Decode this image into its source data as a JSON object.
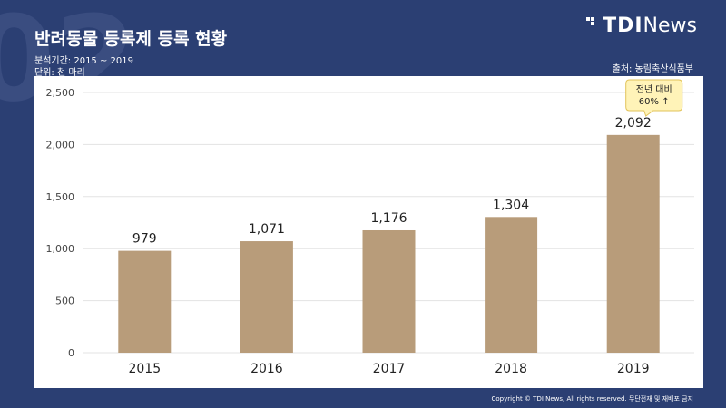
{
  "header": {
    "title": "반려동물 등록제 등록 현황",
    "period": "분석기간: 2015 ~ 2019",
    "unit": "단위: 천 마리",
    "source": "출처: 농림축산식품부",
    "logo_bold": "TDI",
    "logo_light": "News",
    "deco_text": "02"
  },
  "footer": {
    "copyright": "Copyright © TDI News, All rights reserved. 무단전재 및 재배포 금지"
  },
  "colors": {
    "background": "#2b3f73",
    "bar": "#b89c7a",
    "callout_fill": "#fff3b8",
    "callout_border": "#e2c35a"
  },
  "chart_data": {
    "type": "bar",
    "categories": [
      "2015",
      "2016",
      "2017",
      "2018",
      "2019"
    ],
    "values": [
      979,
      1071,
      1176,
      1304,
      2092
    ],
    "value_labels": [
      "979",
      "1,071",
      "1,176",
      "1,304",
      "2,092"
    ],
    "ylim": [
      0,
      2500
    ],
    "yticks": [
      0,
      500,
      1000,
      1500,
      2000,
      2500
    ],
    "ytick_labels": [
      "0",
      "500",
      "1,000",
      "1,500",
      "2,000",
      "2,500"
    ],
    "grid": true,
    "annotation": {
      "line1": "전년 대비",
      "line2": "60% ↑",
      "category": "2019"
    }
  }
}
